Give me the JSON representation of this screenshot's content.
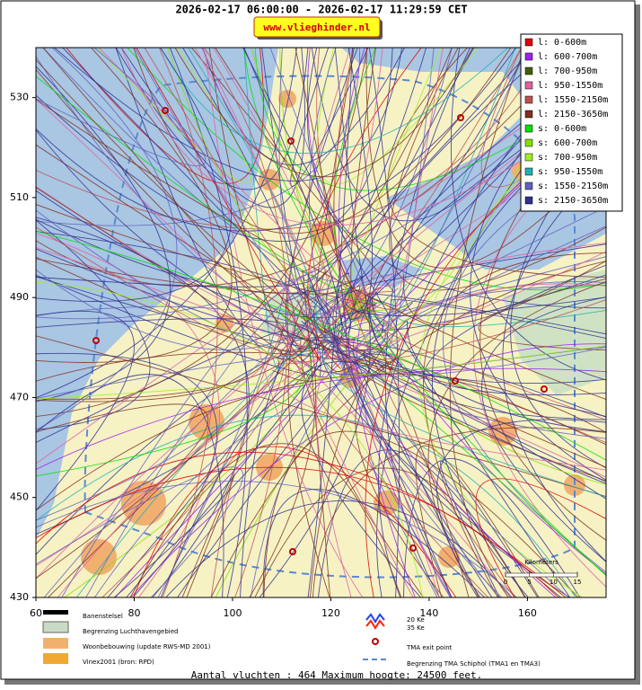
{
  "title": "2026-02-17 06:00:00 - 2026-02-17 11:29:59 CET",
  "badge": "www.vlieghinder.nl",
  "map": {
    "xlim": [
      60,
      176
    ],
    "ylim": [
      430,
      540
    ],
    "xticks": [
      60,
      80,
      100,
      120,
      140,
      160
    ],
    "yticks": [
      430,
      450,
      470,
      490,
      510,
      530
    ]
  },
  "legend": [
    {
      "label": "l: 0-600m",
      "color": "#e00000"
    },
    {
      "label": "l: 600-700m",
      "color": "#a020f0"
    },
    {
      "label": "l: 700-950m",
      "color": "#406000"
    },
    {
      "label": "l: 950-1550m",
      "color": "#e060a0"
    },
    {
      "label": "l: 1550-2150m",
      "color": "#c05050"
    },
    {
      "label": "l: 2150-3650m",
      "color": "#803020"
    },
    {
      "label": "s: 0-600m",
      "color": "#00e000"
    },
    {
      "label": "s: 600-700m",
      "color": "#80e000"
    },
    {
      "label": "s: 700-950m",
      "color": "#a0f020"
    },
    {
      "label": "s: 950-1550m",
      "color": "#20b0b0"
    },
    {
      "label": "s: 1550-2150m",
      "color": "#6060c0"
    },
    {
      "label": "s: 2150-3650m",
      "color": "#303090"
    }
  ],
  "scale": {
    "title": "Kilometers",
    "ticks": [
      0,
      5,
      10,
      15
    ]
  },
  "footer_legend": {
    "runways": "Banenstelsel",
    "airport_boundary": "Begrenzing Luchthavengebied",
    "housing": "Woonbebouwing (update RWS-MD 2001)",
    "vinex": "Vinex2001 (bron: RPD)",
    "ke20": "20 Ke",
    "ke35": "35 Ke",
    "exit_point": "TMA exit point",
    "tma_boundary": "Begrenzing TMA Schiphol  (TMA1 en TMA3)"
  },
  "summary": "Aantal vluchten : 464 Maximum hoogte: 24500 feet."
}
